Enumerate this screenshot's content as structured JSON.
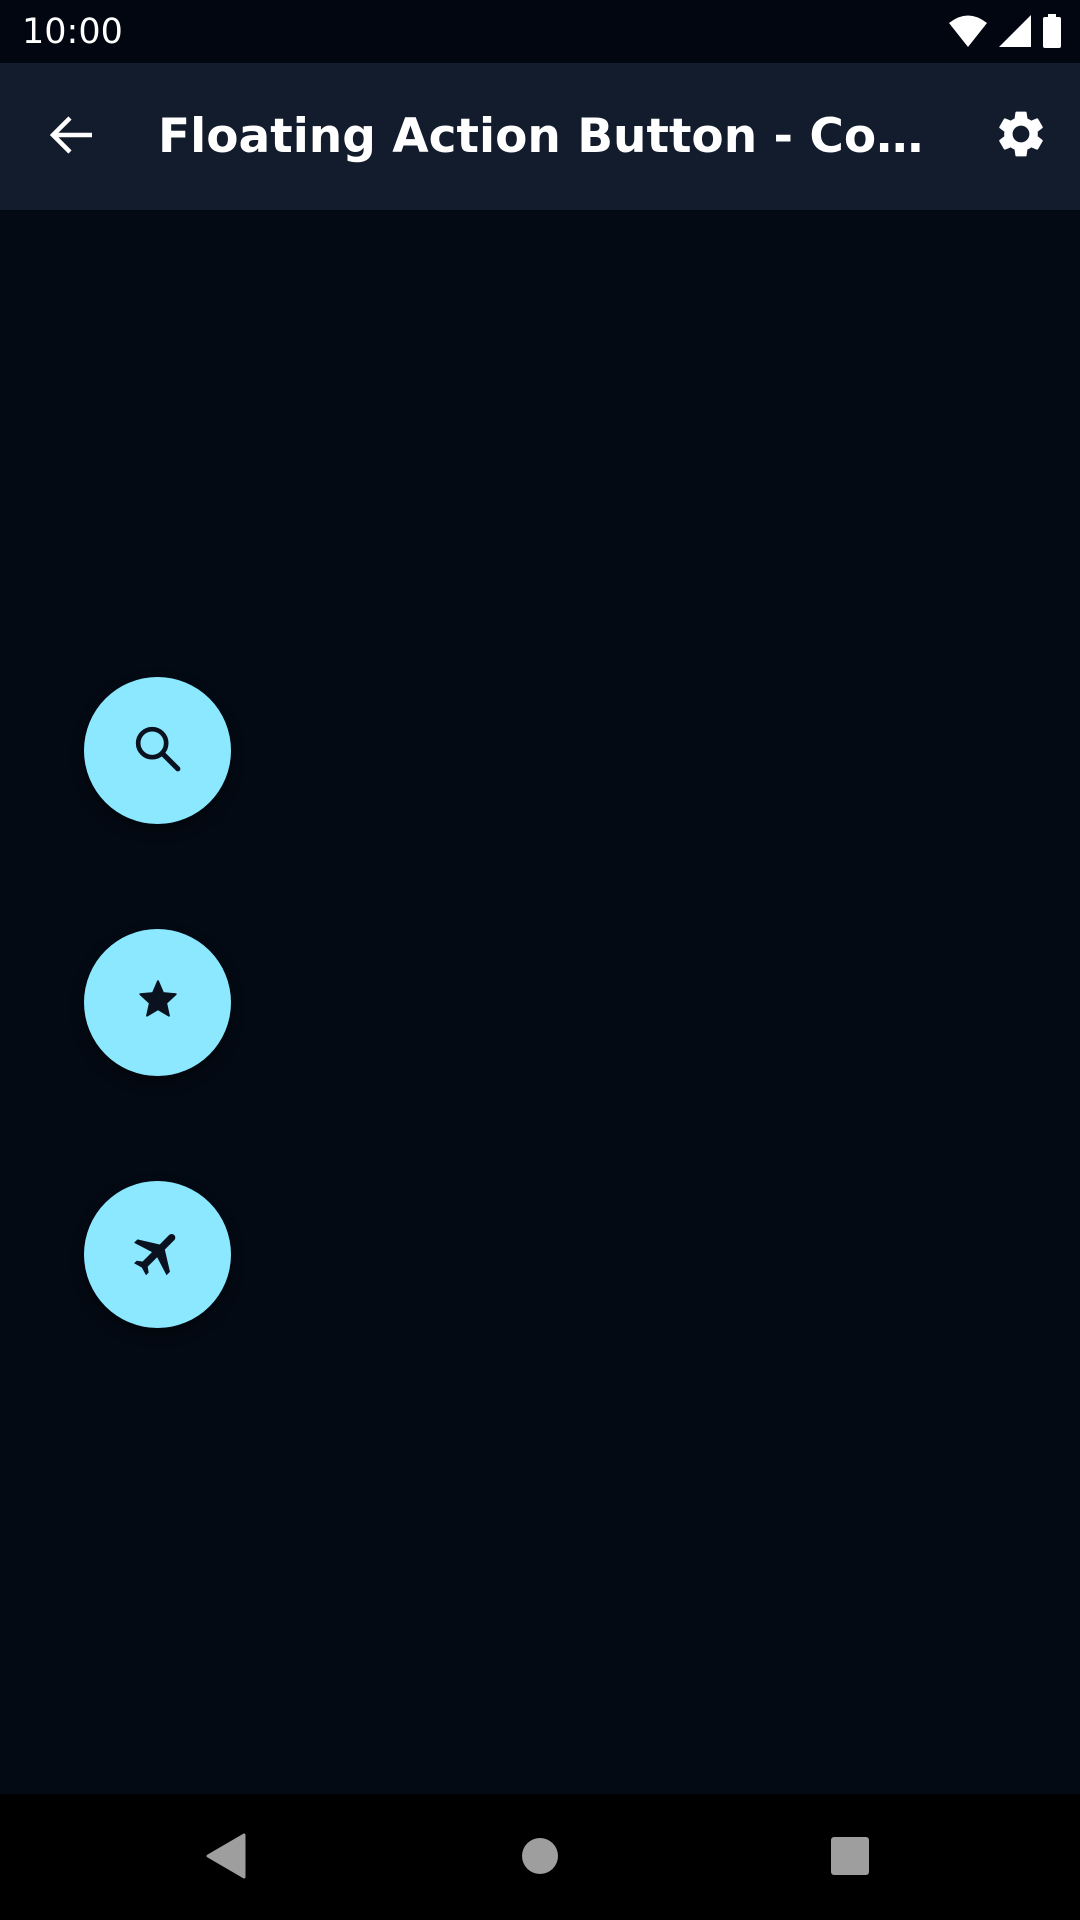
{
  "status_bar": {
    "time": "10:00",
    "icons": [
      "wifi-icon",
      "signal-icon",
      "battery-icon"
    ]
  },
  "app_bar": {
    "title": "Floating Action Button - Comp...",
    "back_icon": "arrow-back-icon",
    "settings_icon": "gear-icon"
  },
  "fabs": [
    {
      "icon": "search-icon"
    },
    {
      "icon": "star-icon"
    },
    {
      "icon": "flight-icon"
    }
  ],
  "nav_bar": {
    "buttons": [
      "back-triangle-icon",
      "home-circle-icon",
      "recents-square-icon"
    ]
  },
  "colors": {
    "background": "#040a14",
    "app_bar": "#131c2c",
    "status_bar": "#020610",
    "fab": "#8be8ff",
    "fab_icon": "#0a1220",
    "nav_bar": "#000000",
    "nav_icon": "#9e9e9e"
  }
}
